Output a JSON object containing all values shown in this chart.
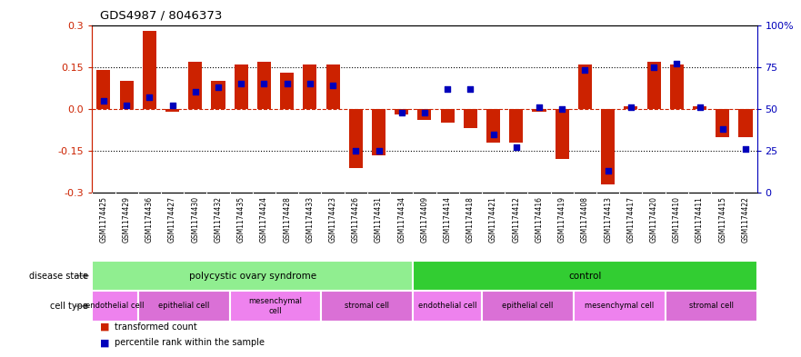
{
  "title": "GDS4987 / 8046373",
  "samples": [
    "GSM1174425",
    "GSM1174429",
    "GSM1174436",
    "GSM1174427",
    "GSM1174430",
    "GSM1174432",
    "GSM1174435",
    "GSM1174424",
    "GSM1174428",
    "GSM1174433",
    "GSM1174423",
    "GSM1174426",
    "GSM1174431",
    "GSM1174434",
    "GSM1174409",
    "GSM1174414",
    "GSM1174418",
    "GSM1174421",
    "GSM1174412",
    "GSM1174416",
    "GSM1174419",
    "GSM1174408",
    "GSM1174413",
    "GSM1174417",
    "GSM1174420",
    "GSM1174410",
    "GSM1174411",
    "GSM1174415",
    "GSM1174422"
  ],
  "red_values": [
    0.14,
    0.1,
    0.28,
    -0.01,
    0.17,
    0.1,
    0.16,
    0.17,
    0.13,
    0.16,
    0.16,
    -0.21,
    -0.165,
    -0.02,
    -0.04,
    -0.05,
    -0.07,
    -0.12,
    -0.12,
    -0.01,
    -0.18,
    0.16,
    -0.27,
    0.01,
    0.17,
    0.16,
    0.01,
    -0.1,
    -0.1
  ],
  "blue_pct": [
    55,
    52,
    57,
    52,
    60,
    63,
    65,
    65,
    65,
    65,
    64,
    25,
    25,
    48,
    48,
    62,
    62,
    35,
    27,
    51,
    50,
    73,
    13,
    51,
    75,
    77,
    51,
    38,
    26
  ],
  "disease_groups": [
    {
      "label": "polycystic ovary syndrome",
      "start": 0,
      "end": 14,
      "color": "#90EE90"
    },
    {
      "label": "control",
      "start": 14,
      "end": 29,
      "color": "#32CD32"
    }
  ],
  "cell_groups": [
    {
      "label": "endothelial cell",
      "start": 0,
      "end": 2,
      "color": "#EE82EE"
    },
    {
      "label": "epithelial cell",
      "start": 2,
      "end": 6,
      "color": "#DA70D6"
    },
    {
      "label": "mesenchymal\ncell",
      "start": 6,
      "end": 10,
      "color": "#EE82EE"
    },
    {
      "label": "stromal cell",
      "start": 10,
      "end": 14,
      "color": "#DA70D6"
    },
    {
      "label": "endothelial cell",
      "start": 14,
      "end": 17,
      "color": "#EE82EE"
    },
    {
      "label": "epithelial cell",
      "start": 17,
      "end": 21,
      "color": "#DA70D6"
    },
    {
      "label": "mesenchymal cell",
      "start": 21,
      "end": 25,
      "color": "#EE82EE"
    },
    {
      "label": "stromal cell",
      "start": 25,
      "end": 29,
      "color": "#DA70D6"
    }
  ],
  "ylim": [
    -0.3,
    0.3
  ],
  "yticks_left": [
    -0.3,
    -0.15,
    0.0,
    0.15,
    0.3
  ],
  "yticks_right_pct": [
    0,
    25,
    50,
    75,
    100
  ],
  "bar_color": "#CC2200",
  "dot_color": "#0000BB",
  "zero_line_color": "#CC2200",
  "ref_line_color": "#000000",
  "label_area_color": "#C8C8C8",
  "ds_label": "disease state",
  "ct_label": "cell type",
  "legend_red_label": "transformed count",
  "legend_blue_label": "percentile rank within the sample"
}
